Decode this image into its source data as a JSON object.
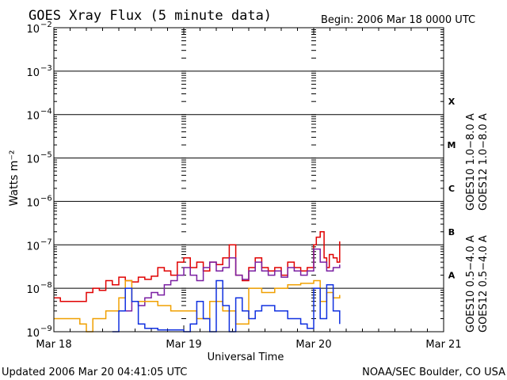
{
  "header": {
    "title": "GOES Xray Flux (5 minute data)",
    "begin": "Begin:  2006 Mar 18 0000 UTC"
  },
  "footer": {
    "updated": "Updated 2006 Mar 20 04:41:05 UTC",
    "credit": "NOAA/SEC Boulder, CO USA"
  },
  "chart_data": {
    "type": "line",
    "title": "GOES Xray Flux (5 minute data)",
    "xlabel": "Universal Time",
    "ylabel": "Watts m⁻²",
    "y_scale": "log",
    "ylim": [
      1e-09,
      0.01
    ],
    "xlim_days": [
      0,
      3
    ],
    "x_ticks": [
      "Mar 18",
      "Mar 19",
      "Mar 20",
      "Mar 21"
    ],
    "y_ticks": [
      {
        "base": "10",
        "exp": "−2",
        "value": 0.01
      },
      {
        "base": "10",
        "exp": "−3",
        "value": 0.001
      },
      {
        "base": "10",
        "exp": "−4",
        "value": 0.0001
      },
      {
        "base": "10",
        "exp": "−5",
        "value": 1e-05
      },
      {
        "base": "10",
        "exp": "−6",
        "value": 1e-06
      },
      {
        "base": "10",
        "exp": "−7",
        "value": 1e-07
      },
      {
        "base": "10",
        "exp": "−8",
        "value": 1e-08
      },
      {
        "base": "10",
        "exp": "−9",
        "value": 1e-09
      }
    ],
    "flare_classes": [
      {
        "label": "X",
        "value": 0.0002
      },
      {
        "label": "M",
        "value": 2e-05
      },
      {
        "label": "C",
        "value": 2e-06
      },
      {
        "label": "B",
        "value": 2e-07
      },
      {
        "label": "A",
        "value": 2e-08
      }
    ],
    "legend_right": [
      {
        "label": "GOES12 1.0−8.0 A",
        "color": "#e00000"
      },
      {
        "label": "GOES10 1.0−8.0 A",
        "color": "#7a1fa2"
      }
    ],
    "legend_left": [
      {
        "label": "GOES12 0.5−4.0 A",
        "color": "#1030e0"
      },
      {
        "label": "GOES10 0.5−4.0 A",
        "color": "#f0a000"
      }
    ],
    "series": [
      {
        "name": "GOES12 1.0−8.0 A",
        "color": "#e00000",
        "x": [
          0,
          0.05,
          0.15,
          0.25,
          0.3,
          0.35,
          0.4,
          0.45,
          0.5,
          0.55,
          0.6,
          0.65,
          0.7,
          0.75,
          0.8,
          0.85,
          0.9,
          0.95,
          1.0,
          1.05,
          1.1,
          1.15,
          1.2,
          1.25,
          1.3,
          1.35,
          1.4,
          1.45,
          1.5,
          1.55,
          1.6,
          1.65,
          1.7,
          1.75,
          1.8,
          1.85,
          1.9,
          1.95,
          2.0,
          2.02,
          2.05,
          2.08,
          2.1,
          2.12,
          2.15,
          2.18,
          2.2
        ],
        "y": [
          6e-09,
          5e-09,
          5e-09,
          8e-09,
          1e-08,
          9e-09,
          1.5e-08,
          1.2e-08,
          1.8e-08,
          1.5e-08,
          1.4e-08,
          1.8e-08,
          1.6e-08,
          1.9e-08,
          3e-08,
          2.5e-08,
          2e-08,
          4e-08,
          5e-08,
          3e-08,
          4e-08,
          2.5e-08,
          4e-08,
          3.5e-08,
          5e-08,
          1e-07,
          2e-08,
          1.5e-08,
          3e-08,
          5e-08,
          3e-08,
          2.5e-08,
          3e-08,
          2e-08,
          4e-08,
          3e-08,
          2.5e-08,
          3e-08,
          1e-07,
          1.5e-07,
          2e-07,
          5e-08,
          3e-08,
          6e-08,
          5e-08,
          4e-08,
          1.2e-07
        ]
      },
      {
        "name": "GOES10 1.0−8.0 A",
        "color": "#7a1fa2",
        "x": [
          0.55,
          0.6,
          0.65,
          0.7,
          0.75,
          0.8,
          0.85,
          0.9,
          0.95,
          1.0,
          1.05,
          1.1,
          1.15,
          1.2,
          1.25,
          1.3,
          1.35,
          1.4,
          1.45,
          1.5,
          1.55,
          1.6,
          1.65,
          1.7,
          1.75,
          1.8,
          1.85,
          1.9,
          1.95,
          2.0,
          2.05,
          2.1,
          2.15,
          2.2
        ],
        "y": [
          3e-09,
          5e-09,
          4e-09,
          6e-09,
          8e-09,
          7e-09,
          1.2e-08,
          1.5e-08,
          2e-08,
          3e-08,
          2e-08,
          1.5e-08,
          3e-08,
          4e-08,
          2.5e-08,
          3e-08,
          5e-08,
          2e-08,
          1.6e-08,
          2.5e-08,
          4e-08,
          2.5e-08,
          2e-08,
          2.5e-08,
          1.8e-08,
          3e-08,
          2.5e-08,
          2e-08,
          2.5e-08,
          8e-08,
          4e-08,
          2.5e-08,
          3e-08,
          3.5e-08
        ]
      },
      {
        "name": "GOES10 0.5−4.0 A",
        "color": "#f0a000",
        "x": [
          0,
          0.1,
          0.2,
          0.25,
          0.3,
          0.4,
          0.5,
          0.55,
          0.6,
          0.7,
          0.8,
          0.9,
          1.0,
          1.1,
          1.2,
          1.3,
          1.4,
          1.5,
          1.6,
          1.7,
          1.8,
          1.9,
          2.0,
          2.05,
          2.1,
          2.15,
          2.2
        ],
        "y": [
          2e-09,
          2e-09,
          1.5e-09,
          1e-09,
          2e-09,
          3e-09,
          6e-09,
          1.5e-08,
          5e-09,
          5e-09,
          4e-09,
          3e-09,
          3e-09,
          2e-09,
          5e-09,
          3e-09,
          1.5e-09,
          1e-08,
          8e-09,
          1e-08,
          1.2e-08,
          1.3e-08,
          1.5e-08,
          5e-09,
          8e-09,
          6e-09,
          7e-09
        ]
      },
      {
        "name": "GOES12 0.5−4.0 A",
        "color": "#1030e0",
        "x": [
          0.45,
          0.5,
          0.55,
          0.6,
          0.65,
          0.7,
          0.75,
          0.8,
          0.9,
          1.0,
          1.05,
          1.1,
          1.15,
          1.2,
          1.25,
          1.3,
          1.35,
          1.4,
          1.45,
          1.5,
          1.55,
          1.6,
          1.7,
          1.8,
          1.9,
          1.95,
          2.0,
          2.05,
          2.1,
          2.15,
          2.2
        ],
        "y": [
          1e-09,
          3e-09,
          1e-08,
          5e-09,
          1.5e-09,
          1.2e-09,
          1.2e-09,
          1.1e-09,
          1.1e-09,
          1e-09,
          1.5e-09,
          5e-09,
          2e-09,
          1e-09,
          1.5e-08,
          4e-09,
          1e-09,
          6e-09,
          3e-09,
          2e-09,
          3e-09,
          4e-09,
          3e-09,
          2e-09,
          1.5e-09,
          1.2e-09,
          1e-08,
          2e-09,
          1.2e-08,
          3e-09,
          1.5e-09
        ]
      }
    ]
  }
}
